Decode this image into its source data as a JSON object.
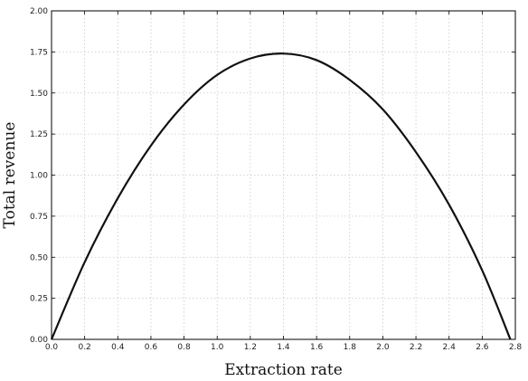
{
  "chart_data": {
    "type": "line",
    "title": "",
    "xlabel": "Extraction rate",
    "ylabel": "Total revenue",
    "xlim": [
      0.0,
      2.8
    ],
    "ylim": [
      0.0,
      2.0
    ],
    "x_ticks": [
      "0.0",
      "0.2",
      "0.4",
      "0.6",
      "0.8",
      "1.0",
      "1.2",
      "1.4",
      "1.6",
      "1.8",
      "2.0",
      "2.2",
      "2.4",
      "2.6",
      "2.8"
    ],
    "y_ticks": [
      "0.00",
      "0.25",
      "0.50",
      "0.75",
      "1.00",
      "1.25",
      "1.50",
      "1.75",
      "2.00"
    ],
    "grid": true,
    "series": [
      {
        "color": "#111111",
        "x": [
          0.0,
          0.2,
          0.4,
          0.6,
          0.8,
          1.0,
          1.2,
          1.4,
          1.6,
          1.8,
          2.0,
          2.2,
          2.4,
          2.6,
          2.77
        ],
        "y": [
          0.0,
          0.47,
          0.86,
          1.18,
          1.43,
          1.61,
          1.71,
          1.74,
          1.7,
          1.58,
          1.4,
          1.14,
          0.82,
          0.42,
          0.0
        ]
      }
    ]
  }
}
